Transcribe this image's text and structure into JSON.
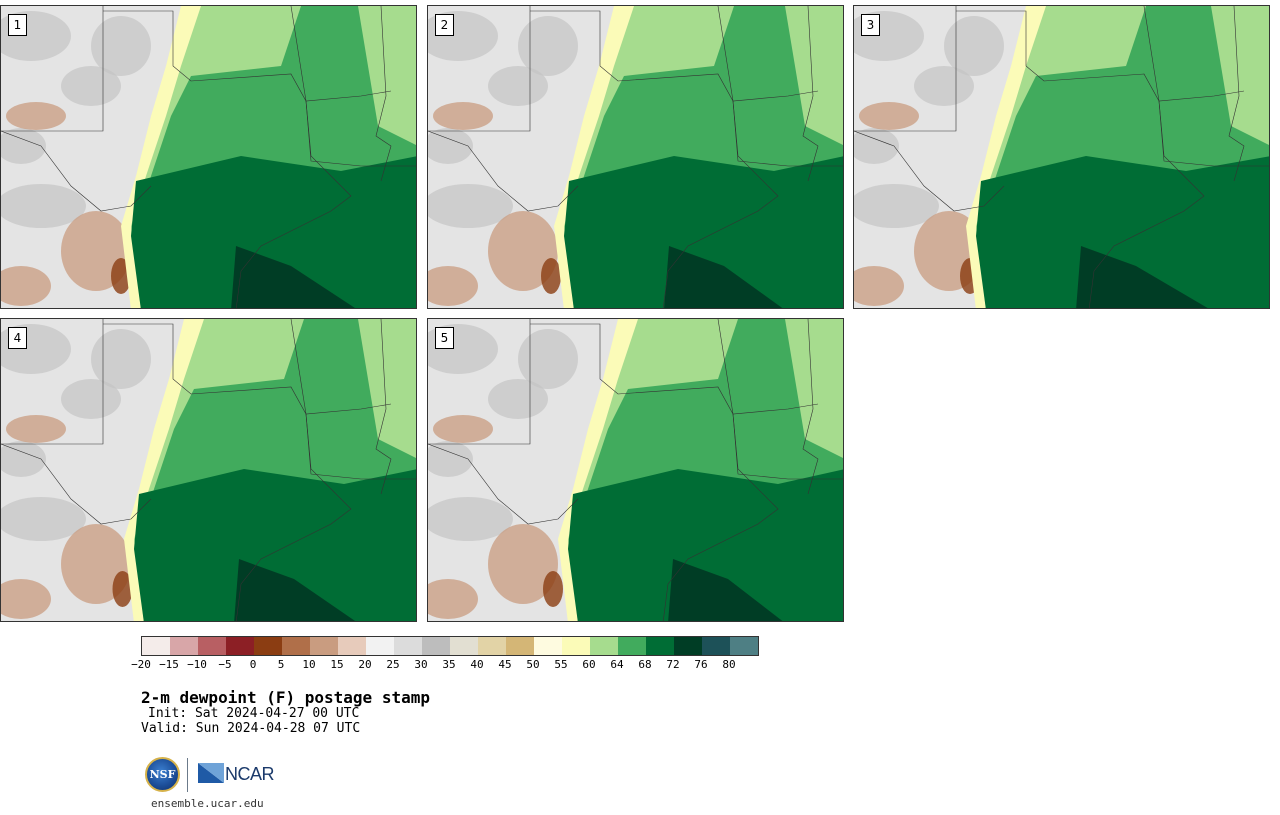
{
  "panels": [
    {
      "label": "1"
    },
    {
      "label": "2"
    },
    {
      "label": "3"
    },
    {
      "label": "4"
    },
    {
      "label": "5"
    }
  ],
  "colorbar": {
    "colors": [
      "#f4ecea",
      "#d8a6a8",
      "#b85f63",
      "#8c1f25",
      "#8b3d12",
      "#b06f49",
      "#c99c80",
      "#e7cbbb",
      "#f2f2f2",
      "#dcdcdc",
      "#bdbdbd",
      "#e2dfd2",
      "#e2d3a6",
      "#d4b676",
      "#fefbe0",
      "#fbfbb8",
      "#a6dc8e",
      "#41ab5d",
      "#006d35",
      "#003d25",
      "#1d5158",
      "#4e7f84"
    ],
    "ticks": [
      "−20",
      "−15",
      "−10",
      "−5",
      "0",
      "5",
      "10",
      "15",
      "20",
      "25",
      "30",
      "35",
      "40",
      "45",
      "50",
      "55",
      "60",
      "64",
      "68",
      "72",
      "76",
      "80"
    ]
  },
  "title": "2-m dewpoint (F) postage stamp",
  "init": "Init: Sat 2024-04-27 00 UTC",
  "valid": "Valid: Sun 2024-04-28 07 UTC",
  "logos": {
    "nsf": "NSF",
    "ncar": "NCAR"
  },
  "url": "ensemble.ucar.edu"
}
